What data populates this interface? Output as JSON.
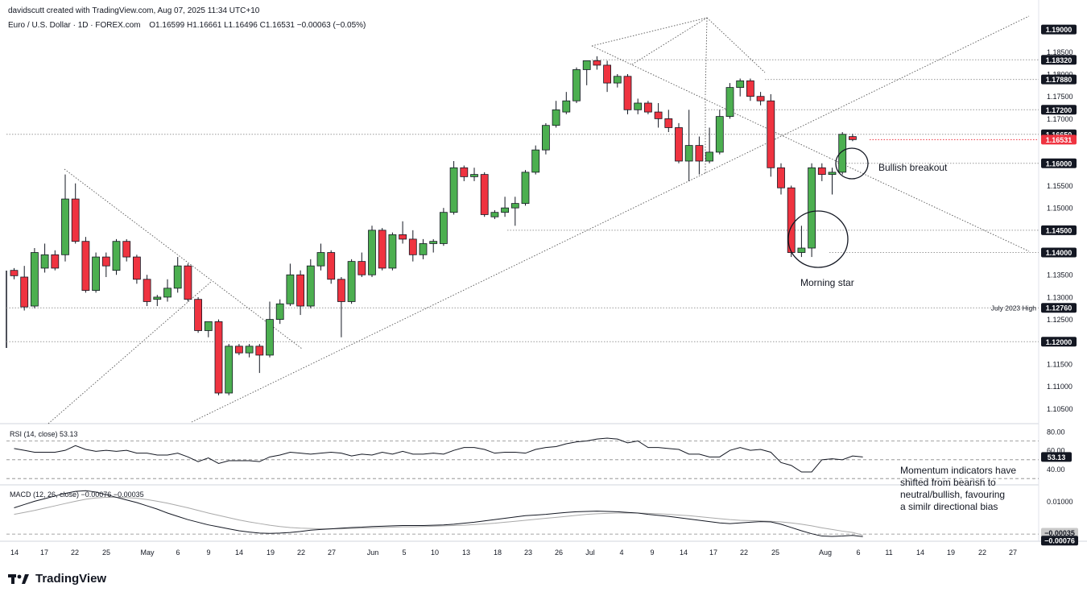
{
  "header": {
    "author_line": "davidscutt created with TradingView.com, Aug 07, 2025 11:34 UTC+10",
    "symbol": "Euro / U.S. Dollar · 1D · FOREX.com",
    "ohlc": "O1.16599  H1.16661  L1.16496  C1.16531  −0.00063 (−0.05%)"
  },
  "brand": {
    "name": "TradingView"
  },
  "colors": {
    "up": "#4caf50",
    "down": "#ef3340",
    "wick": "#131722",
    "grid_line": "#9a9a9a",
    "label_bg": "#131722",
    "last_bg": "#ef3340"
  },
  "chart_data": {
    "type": "candlestick",
    "x_ticks": [
      "14",
      "17",
      "22",
      "25",
      "May",
      "6",
      "9",
      "14",
      "19",
      "22",
      "27",
      "Jun",
      "5",
      "10",
      "13",
      "18",
      "23",
      "26",
      "Jul",
      "4",
      "9",
      "14",
      "17",
      "22",
      "25",
      "Aug",
      "6",
      "11",
      "14",
      "19",
      "22",
      "27"
    ],
    "price_axis": {
      "ticks": [
        "1.18500",
        "1.18000",
        "1.17500",
        "1.17000",
        "1.16500",
        "1.15500",
        "1.15000",
        "1.13500",
        "1.13000",
        "1.12500",
        "1.11500",
        "1.11000",
        "1.10500"
      ],
      "levels": [
        {
          "value": 1.19,
          "label": "1.19000"
        },
        {
          "value": 1.1832,
          "label": "1.18320"
        },
        {
          "value": 1.1788,
          "label": "1.17880"
        },
        {
          "value": 1.172,
          "label": "1.17200"
        },
        {
          "value": 1.1665,
          "label": "1.16650"
        },
        {
          "value": 1.16531,
          "label": "1.16531",
          "last": true
        },
        {
          "value": 1.16,
          "label": "1.16000"
        },
        {
          "value": 1.145,
          "label": "1.14500"
        },
        {
          "value": 1.14,
          "label": "1.14000"
        },
        {
          "value": 1.1276,
          "label": "1.12760",
          "note": "July 2023 High"
        },
        {
          "value": 1.12,
          "label": "1.12000"
        }
      ],
      "ylim": [
        1.102,
        1.193
      ]
    },
    "candles": [
      {
        "o": 1.136,
        "h": 1.1365,
        "l": 1.134,
        "c": 1.1348
      },
      {
        "o": 1.1345,
        "h": 1.137,
        "l": 1.127,
        "c": 1.1278
      },
      {
        "o": 1.128,
        "h": 1.141,
        "l": 1.1275,
        "c": 1.14
      },
      {
        "o": 1.1365,
        "h": 1.142,
        "l": 1.1355,
        "c": 1.1395
      },
      {
        "o": 1.1395,
        "h": 1.1405,
        "l": 1.136,
        "c": 1.1365
      },
      {
        "o": 1.1395,
        "h": 1.1575,
        "l": 1.138,
        "c": 1.152
      },
      {
        "o": 1.152,
        "h": 1.1555,
        "l": 1.142,
        "c": 1.1425
      },
      {
        "o": 1.1425,
        "h": 1.1435,
        "l": 1.131,
        "c": 1.1315
      },
      {
        "o": 1.1315,
        "h": 1.14,
        "l": 1.131,
        "c": 1.139
      },
      {
        "o": 1.139,
        "h": 1.14,
        "l": 1.1345,
        "c": 1.137
      },
      {
        "o": 1.136,
        "h": 1.143,
        "l": 1.135,
        "c": 1.1425
      },
      {
        "o": 1.1425,
        "h": 1.143,
        "l": 1.138,
        "c": 1.139
      },
      {
        "o": 1.139,
        "h": 1.1395,
        "l": 1.133,
        "c": 1.134
      },
      {
        "o": 1.134,
        "h": 1.135,
        "l": 1.128,
        "c": 1.129
      },
      {
        "o": 1.1295,
        "h": 1.1305,
        "l": 1.128,
        "c": 1.13
      },
      {
        "o": 1.13,
        "h": 1.134,
        "l": 1.129,
        "c": 1.132
      },
      {
        "o": 1.132,
        "h": 1.139,
        "l": 1.131,
        "c": 1.137
      },
      {
        "o": 1.137,
        "h": 1.1375,
        "l": 1.129,
        "c": 1.1295
      },
      {
        "o": 1.1295,
        "h": 1.13,
        "l": 1.122,
        "c": 1.1225
      },
      {
        "o": 1.1225,
        "h": 1.1245,
        "l": 1.121,
        "c": 1.1245
      },
      {
        "o": 1.1245,
        "h": 1.125,
        "l": 1.108,
        "c": 1.1085
      },
      {
        "o": 1.1085,
        "h": 1.1195,
        "l": 1.108,
        "c": 1.119
      },
      {
        "o": 1.119,
        "h": 1.1195,
        "l": 1.117,
        "c": 1.1175
      },
      {
        "o": 1.1175,
        "h": 1.1195,
        "l": 1.1165,
        "c": 1.119
      },
      {
        "o": 1.119,
        "h": 1.1195,
        "l": 1.113,
        "c": 1.117
      },
      {
        "o": 1.117,
        "h": 1.129,
        "l": 1.1165,
        "c": 1.125
      },
      {
        "o": 1.125,
        "h": 1.1295,
        "l": 1.124,
        "c": 1.1285
      },
      {
        "o": 1.1285,
        "h": 1.1375,
        "l": 1.128,
        "c": 1.135
      },
      {
        "o": 1.135,
        "h": 1.136,
        "l": 1.126,
        "c": 1.128
      },
      {
        "o": 1.128,
        "h": 1.1385,
        "l": 1.1275,
        "c": 1.137
      },
      {
        "o": 1.137,
        "h": 1.142,
        "l": 1.136,
        "c": 1.14
      },
      {
        "o": 1.14,
        "h": 1.1405,
        "l": 1.133,
        "c": 1.134
      },
      {
        "o": 1.134,
        "h": 1.1345,
        "l": 1.121,
        "c": 1.129
      },
      {
        "o": 1.129,
        "h": 1.1385,
        "l": 1.1285,
        "c": 1.138
      },
      {
        "o": 1.138,
        "h": 1.14,
        "l": 1.1345,
        "c": 1.135
      },
      {
        "o": 1.135,
        "h": 1.146,
        "l": 1.1345,
        "c": 1.145
      },
      {
        "o": 1.145,
        "h": 1.1455,
        "l": 1.136,
        "c": 1.1365
      },
      {
        "o": 1.1365,
        "h": 1.1445,
        "l": 1.136,
        "c": 1.144
      },
      {
        "o": 1.144,
        "h": 1.147,
        "l": 1.142,
        "c": 1.143
      },
      {
        "o": 1.143,
        "h": 1.145,
        "l": 1.138,
        "c": 1.1395
      },
      {
        "o": 1.1395,
        "h": 1.143,
        "l": 1.1385,
        "c": 1.142
      },
      {
        "o": 1.142,
        "h": 1.143,
        "l": 1.14,
        "c": 1.1425
      },
      {
        "o": 1.142,
        "h": 1.15,
        "l": 1.1415,
        "c": 1.149
      },
      {
        "o": 1.149,
        "h": 1.1605,
        "l": 1.1485,
        "c": 1.159
      },
      {
        "o": 1.159,
        "h": 1.1595,
        "l": 1.156,
        "c": 1.157
      },
      {
        "o": 1.157,
        "h": 1.159,
        "l": 1.156,
        "c": 1.1575
      },
      {
        "o": 1.1575,
        "h": 1.158,
        "l": 1.148,
        "c": 1.1485
      },
      {
        "o": 1.148,
        "h": 1.1495,
        "l": 1.1475,
        "c": 1.149
      },
      {
        "o": 1.149,
        "h": 1.1525,
        "l": 1.148,
        "c": 1.15
      },
      {
        "o": 1.15,
        "h": 1.1525,
        "l": 1.146,
        "c": 1.151
      },
      {
        "o": 1.151,
        "h": 1.1585,
        "l": 1.1505,
        "c": 1.158
      },
      {
        "o": 1.158,
        "h": 1.164,
        "l": 1.1575,
        "c": 1.163
      },
      {
        "o": 1.163,
        "h": 1.169,
        "l": 1.162,
        "c": 1.1685
      },
      {
        "o": 1.1685,
        "h": 1.174,
        "l": 1.168,
        "c": 1.172
      },
      {
        "o": 1.1715,
        "h": 1.176,
        "l": 1.171,
        "c": 1.174
      },
      {
        "o": 1.174,
        "h": 1.1815,
        "l": 1.1735,
        "c": 1.181
      },
      {
        "o": 1.181,
        "h": 1.183,
        "l": 1.1775,
        "c": 1.183
      },
      {
        "o": 1.183,
        "h": 1.184,
        "l": 1.181,
        "c": 1.182
      },
      {
        "o": 1.182,
        "h": 1.183,
        "l": 1.176,
        "c": 1.178
      },
      {
        "o": 1.178,
        "h": 1.18,
        "l": 1.177,
        "c": 1.1795
      },
      {
        "o": 1.1795,
        "h": 1.18,
        "l": 1.171,
        "c": 1.172
      },
      {
        "o": 1.172,
        "h": 1.1745,
        "l": 1.171,
        "c": 1.1735
      },
      {
        "o": 1.1735,
        "h": 1.174,
        "l": 1.171,
        "c": 1.1715
      },
      {
        "o": 1.1715,
        "h": 1.1735,
        "l": 1.168,
        "c": 1.17
      },
      {
        "o": 1.17,
        "h": 1.172,
        "l": 1.167,
        "c": 1.168
      },
      {
        "o": 1.168,
        "h": 1.169,
        "l": 1.16,
        "c": 1.1605
      },
      {
        "o": 1.1605,
        "h": 1.172,
        "l": 1.156,
        "c": 1.164
      },
      {
        "o": 1.164,
        "h": 1.166,
        "l": 1.1575,
        "c": 1.1605
      },
      {
        "o": 1.1605,
        "h": 1.168,
        "l": 1.16,
        "c": 1.1625
      },
      {
        "o": 1.1625,
        "h": 1.172,
        "l": 1.162,
        "c": 1.1705
      },
      {
        "o": 1.1705,
        "h": 1.178,
        "l": 1.17,
        "c": 1.177
      },
      {
        "o": 1.177,
        "h": 1.179,
        "l": 1.175,
        "c": 1.1785
      },
      {
        "o": 1.1785,
        "h": 1.179,
        "l": 1.174,
        "c": 1.175
      },
      {
        "o": 1.175,
        "h": 1.176,
        "l": 1.173,
        "c": 1.174
      },
      {
        "o": 1.174,
        "h": 1.1755,
        "l": 1.157,
        "c": 1.159
      },
      {
        "o": 1.159,
        "h": 1.16,
        "l": 1.153,
        "c": 1.1545
      },
      {
        "o": 1.1545,
        "h": 1.155,
        "l": 1.139,
        "c": 1.14
      },
      {
        "o": 1.14,
        "h": 1.146,
        "l": 1.139,
        "c": 1.141
      },
      {
        "o": 1.141,
        "h": 1.16,
        "l": 1.139,
        "c": 1.159
      },
      {
        "o": 1.159,
        "h": 1.16,
        "l": 1.156,
        "c": 1.1575
      },
      {
        "o": 1.1575,
        "h": 1.159,
        "l": 1.153,
        "c": 1.158
      },
      {
        "o": 1.158,
        "h": 1.167,
        "l": 1.1575,
        "c": 1.1665
      },
      {
        "o": 1.16599,
        "h": 1.16661,
        "l": 1.16496,
        "c": 1.16531
      }
    ],
    "annotations": {
      "morning_star": "Morning star",
      "bullish_breakout": "Bullish breakout",
      "momentum_note": "Momentum indicators have shifted from bearish to neutral/bullish, favouring a similr directional bias"
    },
    "rsi": {
      "label": "RSI (14, close)  53.13",
      "value_label": "53.13",
      "ylim": [
        25,
        85
      ],
      "ticks": [
        {
          "v": 80,
          "label": "80.00"
        },
        {
          "v": 60,
          "label": "60.00"
        },
        {
          "v": 40,
          "label": "40.00"
        }
      ],
      "dashed_levels": [
        70,
        50,
        30
      ],
      "values": [
        62,
        60,
        58,
        58,
        58,
        60,
        65,
        61,
        59,
        60,
        59,
        60,
        57,
        57,
        55,
        55,
        57,
        53,
        48,
        52,
        46,
        49,
        49,
        49,
        48,
        53,
        55,
        58,
        57,
        56,
        57,
        58,
        57,
        54,
        56,
        55,
        58,
        56,
        59,
        56,
        56,
        57,
        56,
        60,
        63,
        63,
        61,
        57,
        58,
        58,
        57,
        61,
        63,
        64,
        67,
        69,
        70,
        72,
        73,
        72,
        68,
        70,
        63,
        63,
        62,
        61,
        56,
        56,
        53,
        53,
        60,
        63,
        60,
        61,
        58,
        47,
        44,
        37,
        37,
        50,
        51,
        50,
        54,
        53
      ]
    },
    "macd": {
      "label": "MACD (12, 26, close)  −0.00076  −0.00035",
      "ylim": [
        -0.0012,
        0.0145
      ],
      "ticks": [
        {
          "v": 0.01,
          "label": "0.01000"
        }
      ],
      "signal_label": "−0.00035",
      "macd_label": "−0.00076",
      "macd": [
        0.008,
        0.009,
        0.01,
        0.0108,
        0.0116,
        0.0124,
        0.013,
        0.0132,
        0.0128,
        0.012,
        0.0112,
        0.0104,
        0.0096,
        0.0086,
        0.0076,
        0.0064,
        0.0054,
        0.0044,
        0.0036,
        0.0028,
        0.0022,
        0.0016,
        0.001,
        0.0006,
        0.0003,
        0.0002,
        0.0003,
        0.0005,
        0.0008,
        0.0012,
        0.0014,
        0.0016,
        0.0018,
        0.002,
        0.0021,
        0.0023,
        0.0024,
        0.0025,
        0.0026,
        0.0026,
        0.0026,
        0.0027,
        0.0028,
        0.003,
        0.0033,
        0.0036,
        0.004,
        0.0044,
        0.0048,
        0.0052,
        0.0056,
        0.0058,
        0.006,
        0.0063,
        0.0066,
        0.0068,
        0.0069,
        0.007,
        0.0069,
        0.0068,
        0.0066,
        0.0064,
        0.006,
        0.0057,
        0.0054,
        0.005,
        0.0046,
        0.0042,
        0.0038,
        0.0034,
        0.0032,
        0.0034,
        0.0036,
        0.0038,
        0.0037,
        0.003,
        0.002,
        0.001,
        0.0001,
        -0.0006,
        -0.0007,
        -0.0006,
        -0.0004,
        -0.00076
      ],
      "signal": [
        0.006,
        0.0066,
        0.0072,
        0.0079,
        0.0086,
        0.0093,
        0.01,
        0.0106,
        0.011,
        0.0112,
        0.0112,
        0.0111,
        0.0109,
        0.0105,
        0.01,
        0.0094,
        0.0087,
        0.008,
        0.0072,
        0.0064,
        0.0057,
        0.005,
        0.0043,
        0.0037,
        0.0032,
        0.0027,
        0.0023,
        0.002,
        0.0018,
        0.0017,
        0.0016,
        0.0016,
        0.0016,
        0.0017,
        0.0018,
        0.0019,
        0.002,
        0.0021,
        0.0022,
        0.0022,
        0.0023,
        0.0024,
        0.0025,
        0.0026,
        0.0027,
        0.0029,
        0.0031,
        0.0033,
        0.0036,
        0.0039,
        0.0042,
        0.0045,
        0.0048,
        0.0051,
        0.0054,
        0.0057,
        0.006,
        0.0062,
        0.0063,
        0.0064,
        0.0064,
        0.0064,
        0.0063,
        0.0062,
        0.006,
        0.0058,
        0.0056,
        0.0053,
        0.005,
        0.0047,
        0.0044,
        0.0042,
        0.0041,
        0.004,
        0.0039,
        0.0037,
        0.0034,
        0.003,
        0.0025,
        0.0019,
        0.0014,
        0.0009,
        0.0005,
        -0.00035
      ]
    }
  }
}
